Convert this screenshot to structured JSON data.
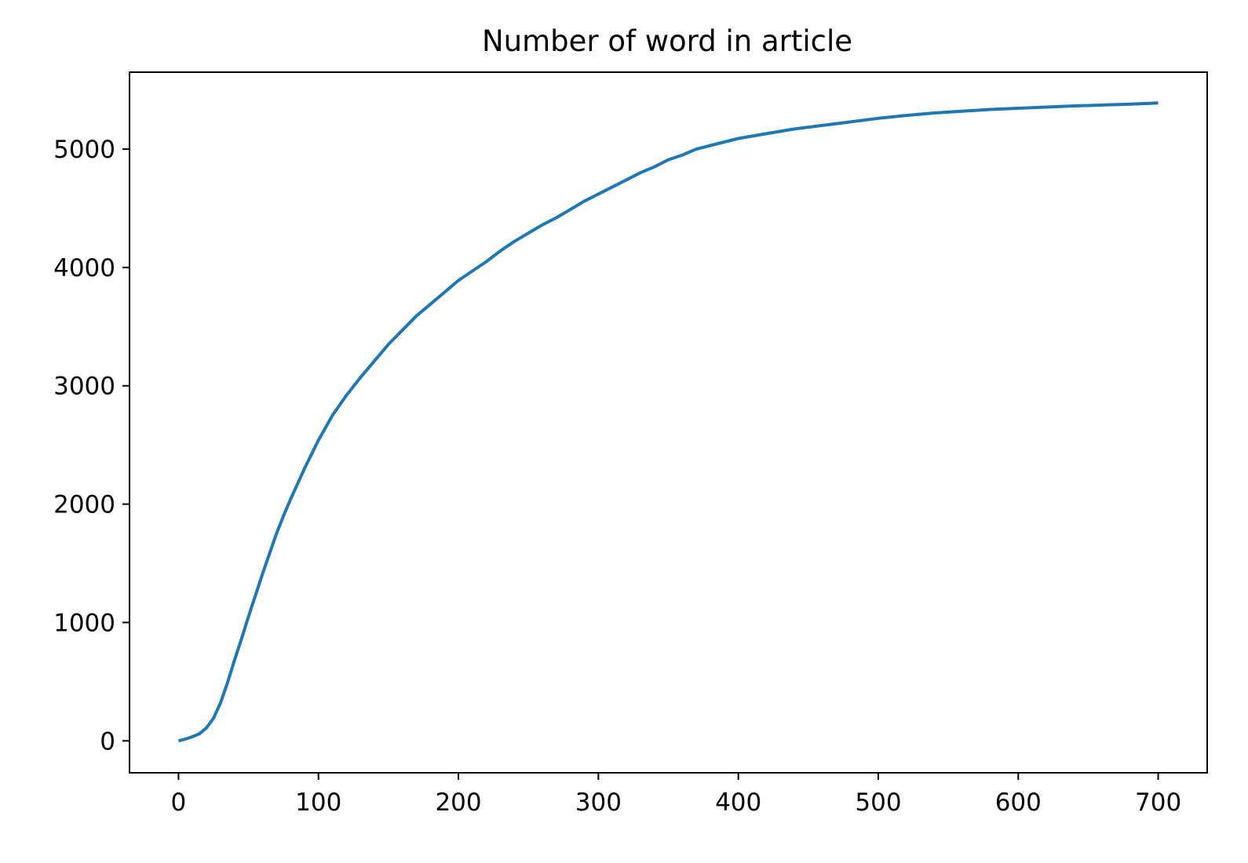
{
  "chart_data": {
    "type": "line",
    "title": "Number of word in article",
    "xlabel": "",
    "ylabel": "",
    "xlim": [
      -35,
      735
    ],
    "ylim": [
      -270,
      5650
    ],
    "x_ticks": [
      0,
      100,
      200,
      300,
      400,
      500,
      600,
      700
    ],
    "y_ticks": [
      0,
      1000,
      2000,
      3000,
      4000,
      5000
    ],
    "x_tick_labels": [
      "0",
      "100",
      "200",
      "300",
      "400",
      "500",
      "600",
      "700"
    ],
    "y_tick_labels": [
      "0",
      "1000",
      "2000",
      "3000",
      "4000",
      "5000"
    ],
    "grid": false,
    "legend": "none",
    "series": [
      {
        "color": "#1f77b4",
        "x": [
          0,
          5,
          10,
          15,
          20,
          25,
          30,
          35,
          40,
          45,
          50,
          55,
          60,
          65,
          70,
          75,
          80,
          85,
          90,
          95,
          100,
          110,
          120,
          130,
          140,
          150,
          160,
          170,
          180,
          190,
          200,
          210,
          220,
          230,
          240,
          250,
          260,
          270,
          280,
          290,
          300,
          310,
          320,
          330,
          340,
          350,
          360,
          370,
          380,
          390,
          400,
          420,
          440,
          460,
          480,
          500,
          520,
          540,
          560,
          580,
          600,
          620,
          640,
          660,
          680,
          700
        ],
        "y": [
          0,
          15,
          35,
          60,
          110,
          190,
          320,
          490,
          680,
          860,
          1050,
          1230,
          1410,
          1580,
          1750,
          1900,
          2040,
          2170,
          2300,
          2420,
          2540,
          2750,
          2920,
          3070,
          3210,
          3350,
          3470,
          3590,
          3690,
          3790,
          3890,
          3970,
          4050,
          4140,
          4220,
          4290,
          4360,
          4420,
          4490,
          4560,
          4620,
          4680,
          4740,
          4800,
          4850,
          4910,
          4950,
          5000,
          5030,
          5060,
          5090,
          5130,
          5170,
          5200,
          5230,
          5260,
          5285,
          5305,
          5320,
          5335,
          5345,
          5355,
          5365,
          5372,
          5380,
          5390
        ]
      }
    ]
  }
}
